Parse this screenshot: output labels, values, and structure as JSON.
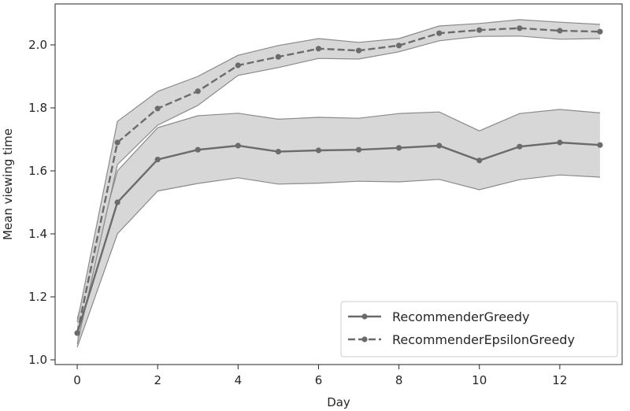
{
  "chart_data": {
    "type": "line",
    "title": "",
    "xlabel": "Day",
    "ylabel": "Mean viewing time",
    "xlim": [
      -0.55,
      13.55
    ],
    "ylim": [
      0.985,
      2.13
    ],
    "xticks": [
      0,
      2,
      4,
      6,
      8,
      10,
      12
    ],
    "yticks": [
      1.0,
      1.2,
      1.4,
      1.6,
      1.8,
      2.0
    ],
    "ytick_labels": [
      "1.0",
      "1.2",
      "1.4",
      "1.6",
      "1.8",
      "2.0"
    ],
    "xtick_labels": [
      "0",
      "2",
      "4",
      "6",
      "8",
      "10",
      "12"
    ],
    "grid": false,
    "legend_position": "lower-right",
    "colors": {
      "line": "#6b6b6b",
      "band_fill": "#d3d3d3",
      "band_edge": "#8a8a8a"
    },
    "x": [
      0,
      1,
      2,
      3,
      4,
      5,
      6,
      7,
      8,
      9,
      10,
      11,
      12,
      13
    ],
    "series": [
      {
        "name": "RecommenderGreedy",
        "linestyle": "solid",
        "values": [
          1.085,
          1.5,
          1.636,
          1.667,
          1.68,
          1.661,
          1.665,
          1.667,
          1.673,
          1.68,
          1.633,
          1.677,
          1.69,
          1.682
        ],
        "lower": [
          1.04,
          1.4,
          1.536,
          1.56,
          1.578,
          1.558,
          1.561,
          1.567,
          1.565,
          1.573,
          1.54,
          1.572,
          1.587,
          1.58
        ],
        "upper": [
          1.13,
          1.6,
          1.737,
          1.775,
          1.783,
          1.764,
          1.77,
          1.767,
          1.782,
          1.787,
          1.727,
          1.782,
          1.795,
          1.784
        ]
      },
      {
        "name": "RecommenderEpsilonGreedy",
        "linestyle": "dashed",
        "values": [
          1.085,
          1.69,
          1.798,
          1.853,
          1.935,
          1.962,
          1.988,
          1.982,
          1.998,
          2.037,
          2.047,
          2.053,
          2.045,
          2.042
        ],
        "lower": [
          1.05,
          1.62,
          1.745,
          1.808,
          1.903,
          1.928,
          1.957,
          1.955,
          1.978,
          2.013,
          2.027,
          2.028,
          2.018,
          2.02
        ],
        "upper": [
          1.12,
          1.757,
          1.852,
          1.9,
          1.967,
          1.998,
          2.02,
          2.008,
          2.02,
          2.06,
          2.068,
          2.08,
          2.072,
          2.065
        ]
      }
    ]
  }
}
